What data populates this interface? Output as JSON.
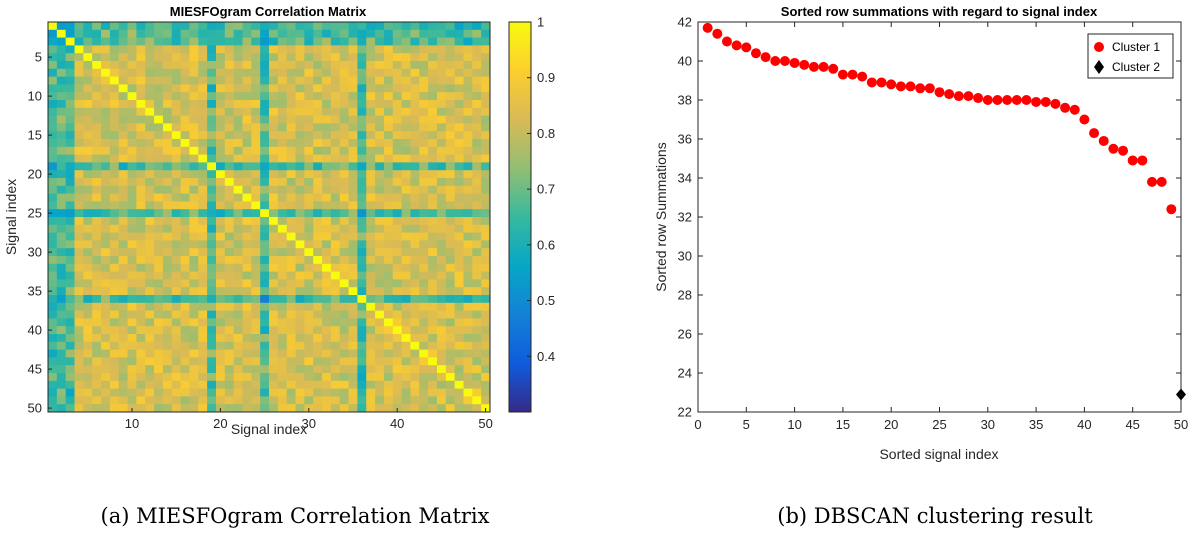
{
  "chart_data": [
    {
      "type": "heatmap",
      "title": "MIESFOgram Correlation Matrix",
      "xlabel": "Signal index",
      "ylabel": "Signal index",
      "size": 50,
      "x_ticks": [
        10,
        20,
        30,
        40,
        50
      ],
      "y_ticks": [
        5,
        10,
        15,
        20,
        25,
        30,
        35,
        40,
        45,
        50
      ],
      "colorbar": {
        "min": 0.3,
        "max": 1,
        "ticks": [
          0.4,
          0.5,
          0.6,
          0.7,
          0.8,
          0.9,
          1
        ]
      },
      "diagonal_value": 1,
      "typical_off_diagonal_range": [
        0.75,
        0.9
      ],
      "low_correlation_signals": [
        1,
        2,
        3,
        19,
        25,
        36
      ],
      "caption": "(a) MIESFOgram Correlation Matrix"
    },
    {
      "type": "scatter",
      "title": "Sorted row summations with regard to signal index",
      "xlabel": "Sorted signal index",
      "ylabel": "Sorted row Summations",
      "xlim": [
        0,
        50
      ],
      "ylim": [
        22,
        42
      ],
      "x_ticks": [
        0,
        5,
        10,
        15,
        20,
        25,
        30,
        35,
        40,
        45,
        50
      ],
      "y_ticks": [
        22,
        24,
        26,
        28,
        30,
        32,
        34,
        36,
        38,
        40,
        42
      ],
      "legend_position": "top-right",
      "series": [
        {
          "name": "Cluster 1",
          "marker": "circle",
          "color": "#ff0000",
          "x": [
            1,
            2,
            3,
            4,
            5,
            6,
            7,
            8,
            9,
            10,
            11,
            12,
            13,
            14,
            15,
            16,
            17,
            18,
            19,
            20,
            21,
            22,
            23,
            24,
            25,
            26,
            27,
            28,
            29,
            30,
            31,
            32,
            33,
            34,
            35,
            36,
            37,
            38,
            39,
            40,
            41,
            42,
            43,
            44,
            45,
            46,
            47,
            48,
            49
          ],
          "values": [
            41.7,
            41.4,
            41.0,
            40.8,
            40.7,
            40.4,
            40.2,
            40.0,
            40.0,
            39.9,
            39.8,
            39.7,
            39.7,
            39.6,
            39.3,
            39.3,
            39.2,
            38.9,
            38.9,
            38.8,
            38.7,
            38.7,
            38.6,
            38.6,
            38.4,
            38.3,
            38.2,
            38.2,
            38.1,
            38.0,
            38.0,
            38.0,
            38.0,
            38.0,
            37.9,
            37.9,
            37.8,
            37.6,
            37.5,
            37.0,
            36.3,
            35.9,
            35.5,
            35.4,
            34.9,
            34.9,
            33.8,
            33.8,
            32.4
          ]
        },
        {
          "name": "Cluster 2",
          "marker": "diamond",
          "color": "#000000",
          "x": [
            50
          ],
          "values": [
            22.9
          ]
        }
      ],
      "caption": "(b) DBSCAN clustering result"
    }
  ]
}
